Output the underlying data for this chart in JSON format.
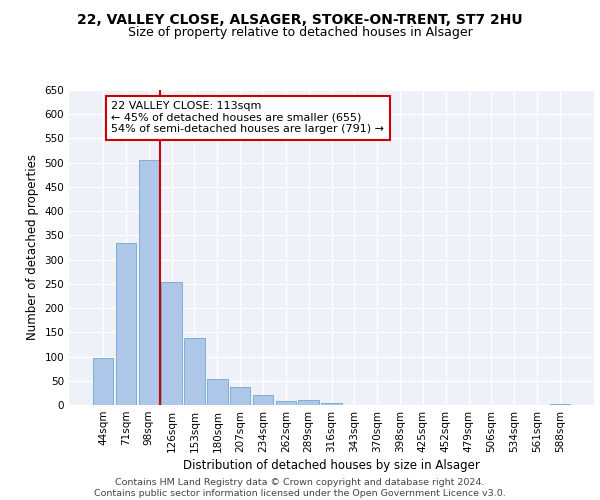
{
  "title_line1": "22, VALLEY CLOSE, ALSAGER, STOKE-ON-TRENT, ST7 2HU",
  "title_line2": "Size of property relative to detached houses in Alsager",
  "xlabel": "Distribution of detached houses by size in Alsager",
  "ylabel": "Number of detached properties",
  "bar_labels": [
    "44sqm",
    "71sqm",
    "98sqm",
    "126sqm",
    "153sqm",
    "180sqm",
    "207sqm",
    "234sqm",
    "262sqm",
    "289sqm",
    "316sqm",
    "343sqm",
    "370sqm",
    "398sqm",
    "425sqm",
    "452sqm",
    "479sqm",
    "506sqm",
    "534sqm",
    "561sqm",
    "588sqm"
  ],
  "bar_values": [
    98,
    335,
    505,
    253,
    138,
    54,
    38,
    21,
    8,
    10,
    5,
    0,
    0,
    0,
    0,
    0,
    0,
    0,
    0,
    0,
    3
  ],
  "bar_color": "#aec6e8",
  "bar_edge_color": "#7aafd4",
  "vline_x": 2.5,
  "vline_color": "#cc0000",
  "annotation_text": "22 VALLEY CLOSE: 113sqm\n← 45% of detached houses are smaller (655)\n54% of semi-detached houses are larger (791) →",
  "annotation_box_color": "#ffffff",
  "annotation_box_edge_color": "#cc0000",
  "ylim": [
    0,
    650
  ],
  "yticks": [
    0,
    50,
    100,
    150,
    200,
    250,
    300,
    350,
    400,
    450,
    500,
    550,
    600,
    650
  ],
  "footer_text": "Contains HM Land Registry data © Crown copyright and database right 2024.\nContains public sector information licensed under the Open Government Licence v3.0.",
  "background_color": "#eef2f8",
  "grid_color": "#ffffff",
  "title_fontsize": 10,
  "subtitle_fontsize": 9,
  "axis_label_fontsize": 8.5,
  "tick_fontsize": 7.5,
  "annotation_fontsize": 8,
  "footer_fontsize": 6.8
}
